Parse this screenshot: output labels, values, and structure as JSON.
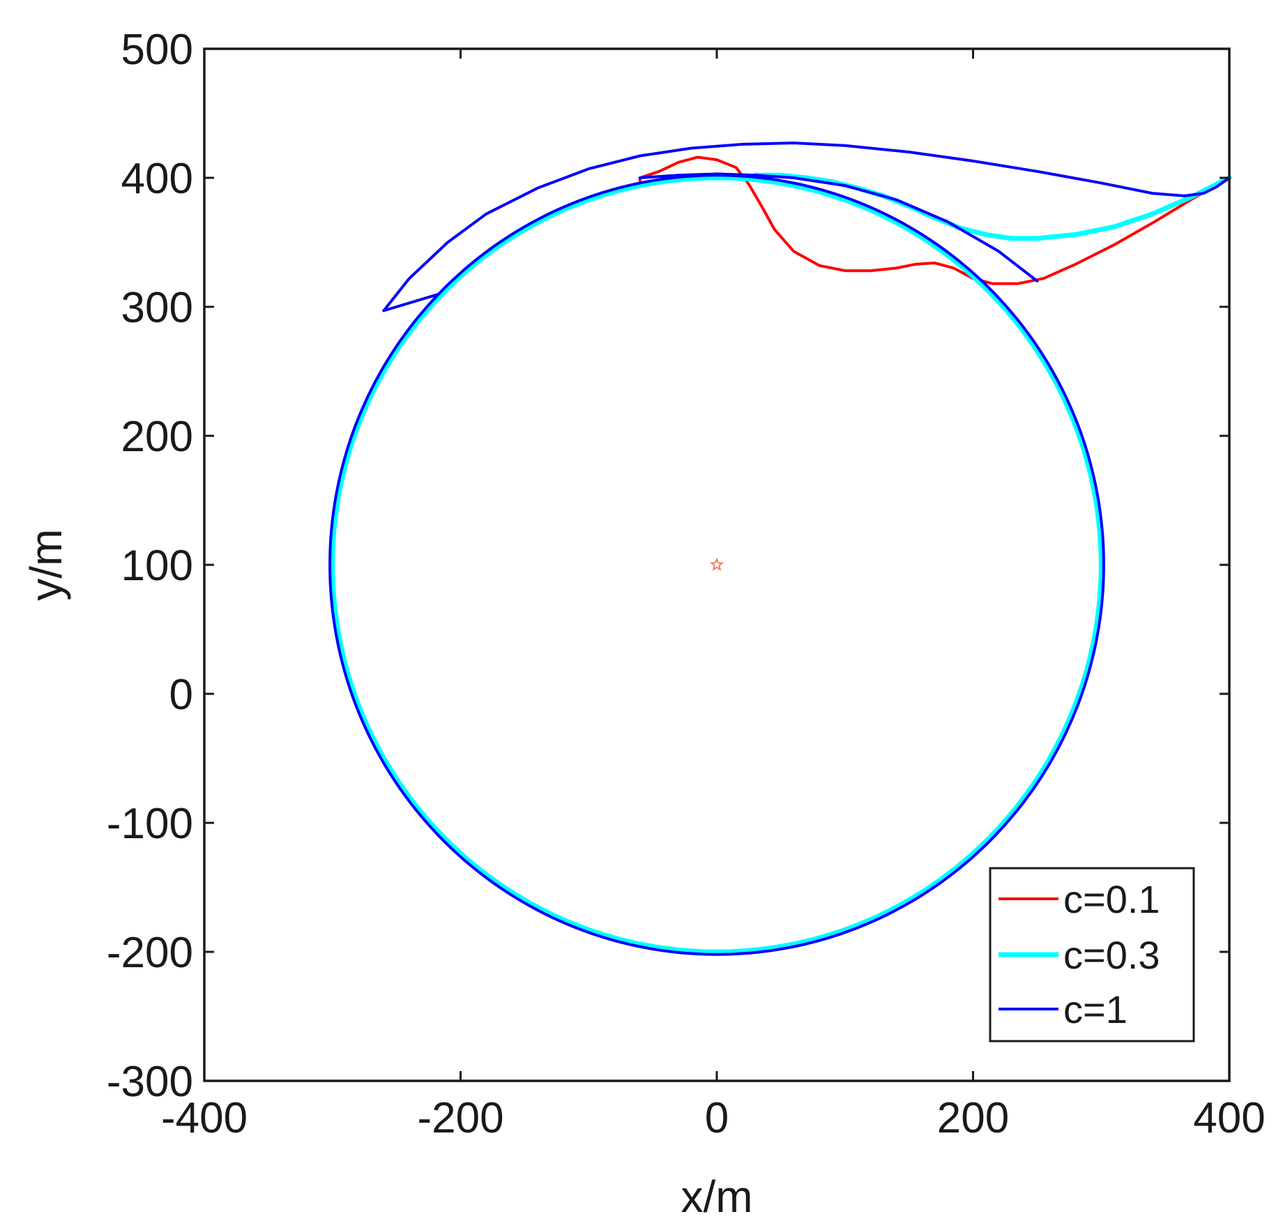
{
  "chart_data": {
    "type": "line",
    "title": "",
    "xlabel": "x/m",
    "ylabel": "y/m",
    "xlim": [
      -400,
      400
    ],
    "ylim": [
      -300,
      500
    ],
    "x_ticks": [
      -400,
      -200,
      0,
      200,
      400
    ],
    "y_ticks": [
      500,
      400,
      300,
      200,
      100,
      0,
      -100,
      -200,
      -300
    ],
    "x_tick_labels": [
      "-400",
      "-200",
      "0",
      "200",
      "400"
    ],
    "y_tick_labels": [
      "500",
      "400",
      "300",
      "200",
      "100",
      "0",
      "-100",
      "-200",
      "-300"
    ],
    "grid": false,
    "legend_position": "bottom-right",
    "center_marker": {
      "x": 0,
      "y": 100,
      "color": "#f08060"
    },
    "series": [
      {
        "name": "c=0.1",
        "color": "#ff0000",
        "path": [
          [
            400,
            400
          ],
          [
            370,
            383
          ],
          [
            340,
            365
          ],
          [
            310,
            348
          ],
          [
            280,
            333
          ],
          [
            255,
            322
          ],
          [
            235,
            318
          ],
          [
            215,
            318
          ],
          [
            200,
            322
          ],
          [
            185,
            330
          ],
          [
            170,
            334
          ],
          [
            155,
            333
          ],
          [
            140,
            330
          ],
          [
            120,
            328
          ],
          [
            100,
            328
          ],
          [
            80,
            332
          ],
          [
            60,
            343
          ],
          [
            45,
            360
          ],
          [
            35,
            378
          ],
          [
            25,
            395
          ],
          [
            15,
            408
          ],
          [
            0,
            414
          ],
          [
            -15,
            416
          ],
          [
            -30,
            412
          ],
          [
            -45,
            405
          ],
          [
            -60,
            400
          ]
        ],
        "circle": {
          "cx": 0,
          "cy": 100,
          "r": 300,
          "from_deg": 101.5,
          "to_deg": -300
        }
      },
      {
        "name": "c=0.3",
        "color": "#00ffff",
        "path": [
          [
            400,
            400
          ],
          [
            370,
            385
          ],
          [
            340,
            372
          ],
          [
            310,
            362
          ],
          [
            280,
            356
          ],
          [
            250,
            353
          ],
          [
            230,
            353
          ],
          [
            210,
            356
          ],
          [
            190,
            361
          ],
          [
            170,
            369
          ],
          [
            150,
            378
          ],
          [
            130,
            386
          ],
          [
            110,
            392
          ],
          [
            90,
            397
          ],
          [
            70,
            400
          ],
          [
            50,
            402
          ],
          [
            30,
            402
          ]
        ],
        "circle": {
          "cx": 0,
          "cy": 100,
          "r": 300,
          "from_deg": 84,
          "to_deg": -276
        }
      },
      {
        "name": "c=1",
        "color": "#0000ff",
        "path": [
          [
            400,
            400
          ],
          [
            390,
            393
          ],
          [
            380,
            388
          ],
          [
            365,
            386
          ],
          [
            340,
            388
          ],
          [
            300,
            396
          ],
          [
            250,
            405
          ],
          [
            200,
            413
          ],
          [
            150,
            420
          ],
          [
            100,
            425
          ],
          [
            60,
            427
          ],
          [
            20,
            426
          ],
          [
            -20,
            423
          ],
          [
            -60,
            417
          ],
          [
            -100,
            407
          ],
          [
            -140,
            392
          ],
          [
            -180,
            372
          ],
          [
            -210,
            350
          ],
          [
            -240,
            322
          ],
          [
            -260,
            297
          ]
        ],
        "circle": {
          "cx": 0,
          "cy": 100,
          "r": 302,
          "from_deg": 136,
          "to_deg": -224
        },
        "path_after": [
          [
            -60,
            400
          ],
          [
            -30,
            402
          ],
          [
            0,
            403
          ],
          [
            30,
            402
          ],
          [
            60,
            400
          ],
          [
            100,
            394
          ],
          [
            140,
            383
          ],
          [
            180,
            366
          ],
          [
            220,
            343
          ],
          [
            250,
            320
          ]
        ]
      }
    ]
  }
}
